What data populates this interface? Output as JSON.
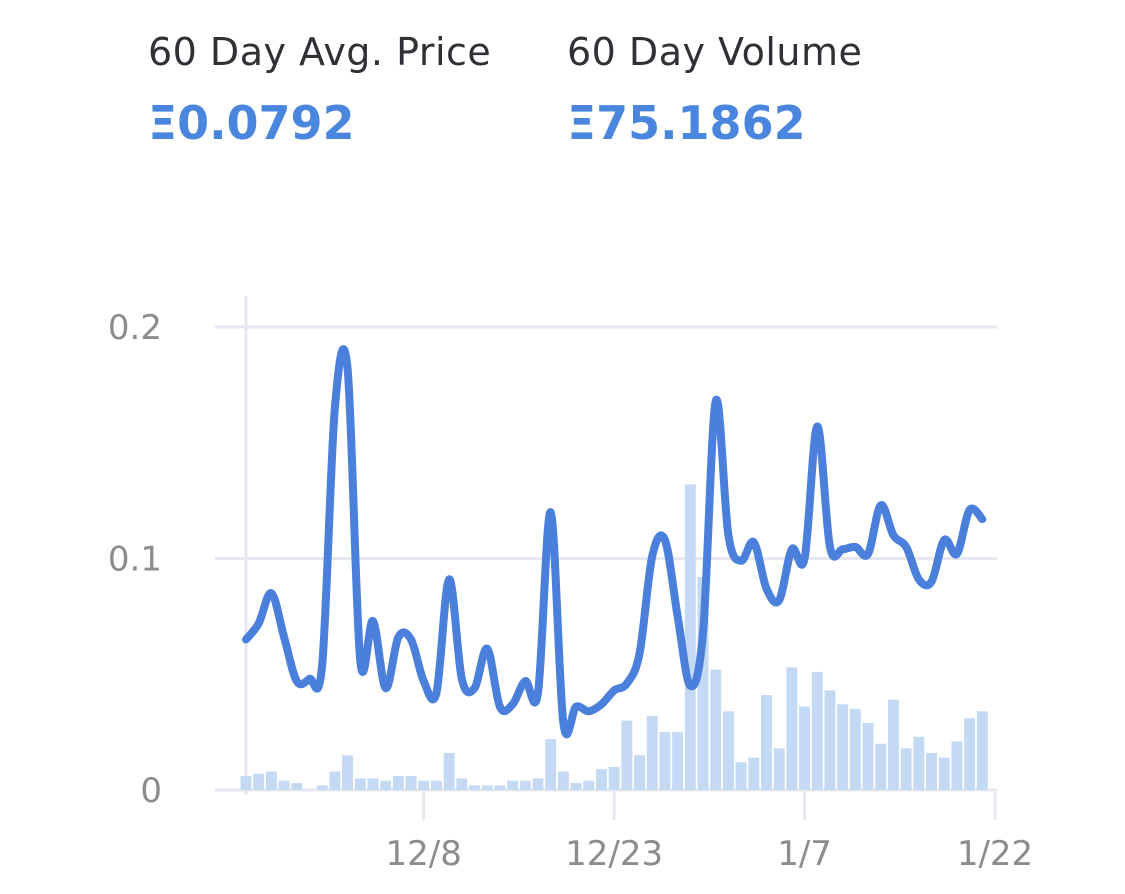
{
  "stats": {
    "avg_price": {
      "label": "60 Day Avg. Price",
      "value": "Ξ0.0792"
    },
    "volume": {
      "label": "60 Day Volume",
      "value": "Ξ75.1862"
    }
  },
  "chart_data": {
    "type": "line+bar",
    "title": "",
    "xlabel": "",
    "ylabel": "",
    "ylim": [
      0,
      0.2
    ],
    "yticks": [
      {
        "value": 0,
        "label": "0"
      },
      {
        "value": 0.1,
        "label": "0.1"
      },
      {
        "value": 0.2,
        "label": "0.2"
      }
    ],
    "xticks": [
      {
        "day": 15,
        "label": "12/8"
      },
      {
        "day": 30,
        "label": "12/23"
      },
      {
        "day": 45,
        "label": "1/7"
      },
      {
        "day": 60,
        "label": "1/22"
      }
    ],
    "days": 60,
    "grid": true,
    "colors": {
      "line": "#4a7fdc",
      "bars": "#c4d9f3",
      "grid": "#e6e8ef",
      "ticks": "#8c8c8c",
      "stat_value": "#4a86dd"
    },
    "series": [
      {
        "type": "line",
        "values": [
          0.065,
          0.072,
          0.085,
          0.066,
          0.047,
          0.048,
          0.054,
          0.165,
          0.182,
          0.056,
          0.073,
          0.044,
          0.066,
          0.065,
          0.047,
          0.042,
          0.091,
          0.048,
          0.044,
          0.061,
          0.036,
          0.037,
          0.047,
          0.042,
          0.12,
          0.029,
          0.036,
          0.034,
          0.037,
          0.043,
          0.046,
          0.059,
          0.101,
          0.108,
          0.075,
          0.045,
          0.068,
          0.168,
          0.11,
          0.099,
          0.107,
          0.087,
          0.082,
          0.104,
          0.1,
          0.157,
          0.105,
          0.104,
          0.105,
          0.102,
          0.123,
          0.11,
          0.105,
          0.091,
          0.09,
          0.108,
          0.102,
          0.121,
          0.117
        ]
      },
      {
        "type": "bar",
        "values": [
          0.006,
          0.007,
          0.008,
          0.004,
          0.003,
          0.0,
          0.002,
          0.008,
          0.015,
          0.005,
          0.005,
          0.004,
          0.006,
          0.006,
          0.004,
          0.004,
          0.016,
          0.005,
          0.002,
          0.002,
          0.002,
          0.004,
          0.004,
          0.005,
          0.022,
          0.008,
          0.003,
          0.004,
          0.009,
          0.01,
          0.03,
          0.015,
          0.032,
          0.025,
          0.025,
          0.132,
          0.092,
          0.052,
          0.034,
          0.012,
          0.014,
          0.041,
          0.018,
          0.053,
          0.036,
          0.051,
          0.043,
          0.037,
          0.035,
          0.029,
          0.02,
          0.039,
          0.018,
          0.023,
          0.016,
          0.014,
          0.021,
          0.031,
          0.034
        ]
      }
    ]
  }
}
